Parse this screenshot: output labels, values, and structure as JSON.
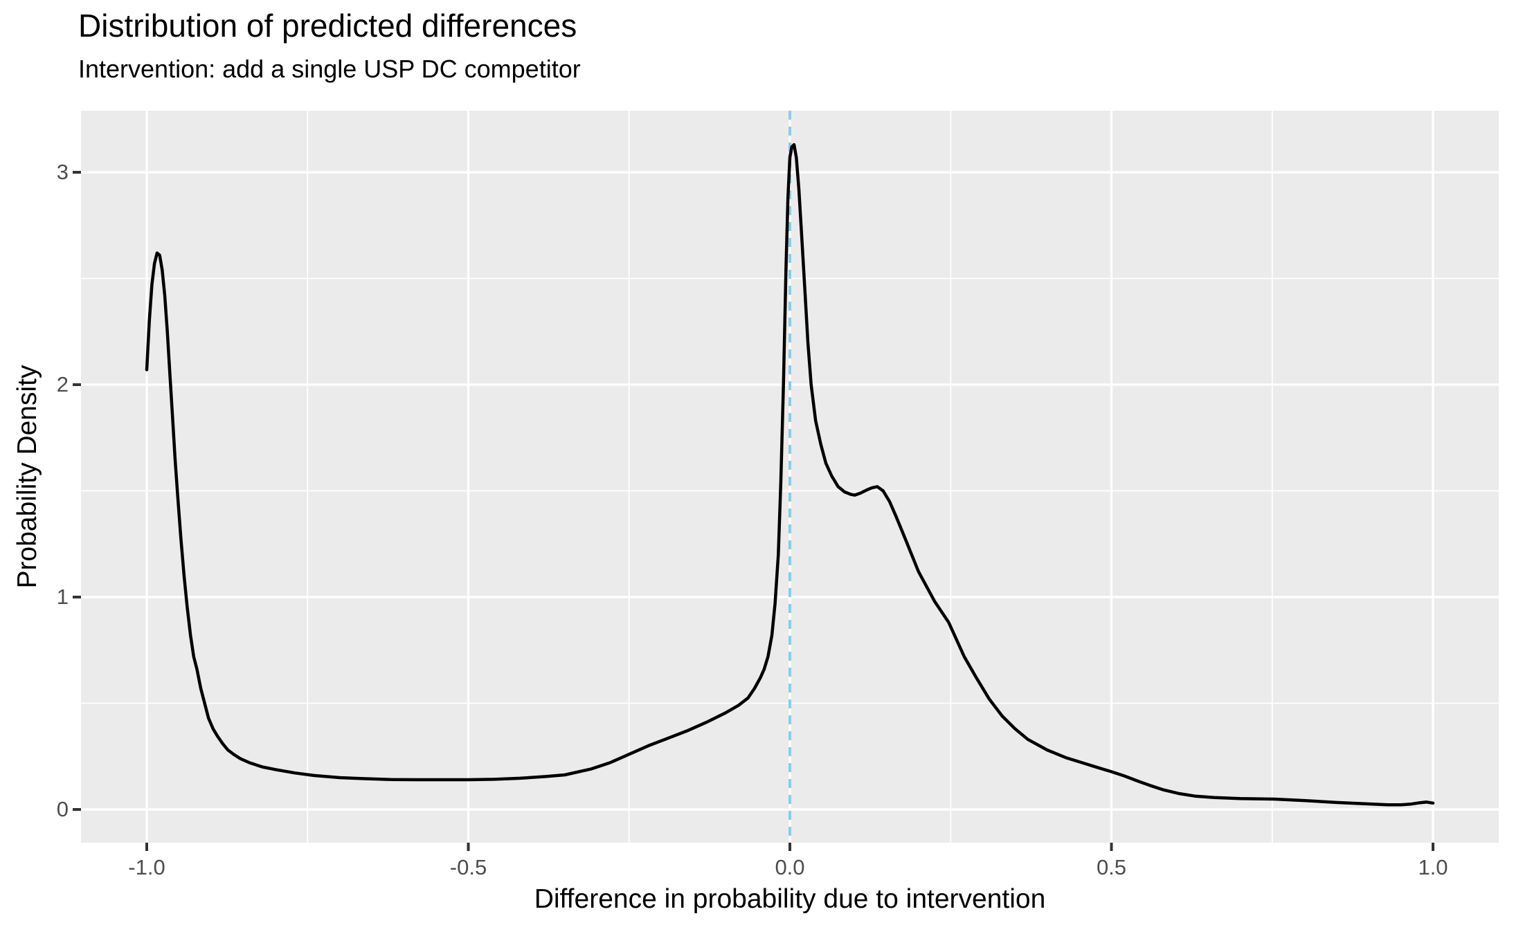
{
  "title": "Distribution of predicted differences",
  "subtitle": "Intervention: add a single USP DC competitor",
  "x_axis": {
    "label": "Difference in probability due to intervention",
    "ticks": [
      "-1.0",
      "-0.5",
      "0.0",
      "0.5",
      "1.0"
    ],
    "tick_values": [
      -1.0,
      -0.5,
      0.0,
      0.5,
      1.0
    ],
    "minor_ticks": [
      -0.75,
      -0.25,
      0.25,
      0.75
    ],
    "range": [
      -1.1,
      1.1
    ]
  },
  "y_axis": {
    "label": "Probability Density",
    "ticks": [
      "0",
      "1",
      "2",
      "3"
    ],
    "tick_values": [
      0,
      1,
      2,
      3
    ],
    "minor_ticks": [
      0.5,
      1.5,
      2.5
    ],
    "range": [
      -0.16,
      3.29
    ]
  },
  "reference_line": {
    "x": 0.0,
    "style": "dashed",
    "color": "#87CEEB"
  },
  "style": {
    "panel_bg": "#EBEBEB",
    "grid_color": "#FFFFFF",
    "line_color": "#000000",
    "tick_label_color": "#4D4D4D",
    "tick_mark_color": "#333333",
    "text_color": "#000000"
  },
  "chart_data": {
    "type": "line",
    "subtype": "density",
    "title": "Distribution of predicted differences",
    "subtitle": "Intervention: add a single USP DC competitor",
    "xlabel": "Difference in probability due to intervention",
    "ylabel": "Probability Density",
    "xlim": [
      -1.1,
      1.1
    ],
    "ylim": [
      -0.16,
      3.29
    ],
    "grid": true,
    "legend": false,
    "reference_line_x": 0.0,
    "x": [
      -1.0,
      -0.996,
      -0.992,
      -0.988,
      -0.984,
      -0.98,
      -0.976,
      -0.972,
      -0.968,
      -0.964,
      -0.96,
      -0.956,
      -0.952,
      -0.947,
      -0.942,
      -0.937,
      -0.932,
      -0.927,
      -0.922,
      -0.916,
      -0.91,
      -0.904,
      -0.897,
      -0.89,
      -0.882,
      -0.874,
      -0.865,
      -0.855,
      -0.84,
      -0.82,
      -0.8,
      -0.77,
      -0.74,
      -0.7,
      -0.66,
      -0.62,
      -0.58,
      -0.54,
      -0.5,
      -0.46,
      -0.42,
      -0.38,
      -0.35,
      -0.31,
      -0.28,
      -0.25,
      -0.22,
      -0.19,
      -0.16,
      -0.13,
      -0.1,
      -0.08,
      -0.065,
      -0.055,
      -0.046,
      -0.04,
      -0.034,
      -0.028,
      -0.023,
      -0.018,
      -0.014,
      -0.01,
      -0.006,
      -0.003,
      0.0,
      0.003,
      0.0065,
      0.01,
      0.014,
      0.018,
      0.023,
      0.028,
      0.033,
      0.04,
      0.048,
      0.056,
      0.065,
      0.075,
      0.085,
      0.095,
      0.101,
      0.11,
      0.12,
      0.128,
      0.136,
      0.145,
      0.155,
      0.165,
      0.18,
      0.2,
      0.225,
      0.247,
      0.271,
      0.29,
      0.31,
      0.33,
      0.35,
      0.37,
      0.4,
      0.43,
      0.46,
      0.48,
      0.5,
      0.52,
      0.54,
      0.56,
      0.58,
      0.605,
      0.63,
      0.66,
      0.7,
      0.753,
      0.8,
      0.85,
      0.9,
      0.93,
      0.95,
      0.965,
      0.98,
      0.99,
      1.0
    ],
    "y": [
      2.07,
      2.3,
      2.47,
      2.57,
      2.62,
      2.61,
      2.54,
      2.42,
      2.25,
      2.05,
      1.85,
      1.65,
      1.48,
      1.28,
      1.1,
      0.95,
      0.82,
      0.72,
      0.66,
      0.57,
      0.5,
      0.43,
      0.38,
      0.345,
      0.31,
      0.28,
      0.26,
      0.24,
      0.22,
      0.2,
      0.188,
      0.172,
      0.16,
      0.15,
      0.145,
      0.141,
      0.14,
      0.14,
      0.14,
      0.142,
      0.147,
      0.155,
      0.163,
      0.19,
      0.22,
      0.26,
      0.3,
      0.335,
      0.37,
      0.41,
      0.455,
      0.49,
      0.525,
      0.57,
      0.62,
      0.66,
      0.72,
      0.82,
      0.97,
      1.2,
      1.55,
      2.0,
      2.55,
      2.88,
      3.07,
      3.12,
      3.13,
      3.07,
      2.92,
      2.72,
      2.46,
      2.2,
      2.0,
      1.83,
      1.72,
      1.63,
      1.57,
      1.52,
      1.495,
      1.483,
      1.48,
      1.49,
      1.505,
      1.515,
      1.52,
      1.5,
      1.45,
      1.38,
      1.27,
      1.12,
      0.98,
      0.88,
      0.72,
      0.62,
      0.52,
      0.44,
      0.38,
      0.33,
      0.28,
      0.243,
      0.215,
      0.196,
      0.178,
      0.158,
      0.135,
      0.113,
      0.093,
      0.075,
      0.063,
      0.056,
      0.051,
      0.049,
      0.042,
      0.033,
      0.026,
      0.022,
      0.022,
      0.025,
      0.032,
      0.035,
      0.03
    ]
  }
}
